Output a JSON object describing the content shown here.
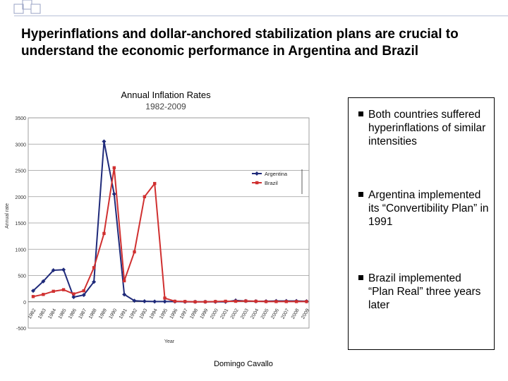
{
  "slide": {
    "title": "Hyperinflations and dollar-anchored stabilization plans are crucial to understand the economic performance in Argentina and Brazil",
    "footer": "Domingo Cavallo",
    "bullets": [
      "Both countries suffered hyperinflations of similar intensities",
      "Argentina implemented its “Convertibility Plan” in 1991",
      "Brazil implemented “Plan Real” three years later"
    ]
  },
  "chart_data": {
    "type": "line",
    "title": "Annual Inflation Rates",
    "subtitle": "1982-2009",
    "xlabel": "Year",
    "ylabel": "Annual rate",
    "ylim": [
      -500,
      3500
    ],
    "yticks": [
      -500,
      0,
      500,
      1000,
      1500,
      2000,
      2500,
      3000,
      3500
    ],
    "x": [
      1982,
      1983,
      1984,
      1985,
      1986,
      1987,
      1988,
      1989,
      1990,
      1991,
      1992,
      1993,
      1994,
      1995,
      1996,
      1997,
      1998,
      1999,
      2000,
      2001,
      2002,
      2003,
      2004,
      2005,
      2006,
      2007,
      2008,
      2009
    ],
    "grid": true,
    "legend": "upper right inside plot",
    "series": [
      {
        "name": "Argentina",
        "color": "#1f2a7a",
        "marker": "diamond",
        "values": [
          210,
          390,
          600,
          610,
          90,
          130,
          380,
          3050,
          2050,
          140,
          20,
          10,
          5,
          5,
          5,
          0,
          0,
          0,
          0,
          0,
          25,
          15,
          10,
          10,
          15,
          15,
          15,
          10
        ]
      },
      {
        "name": "Brazil",
        "color": "#d03030",
        "marker": "square",
        "values": [
          100,
          140,
          200,
          230,
          150,
          210,
          650,
          1300,
          2550,
          400,
          950,
          2000,
          2250,
          70,
          10,
          5,
          0,
          0,
          5,
          10,
          10,
          15,
          10,
          5,
          5,
          5,
          5,
          5
        ]
      }
    ]
  }
}
